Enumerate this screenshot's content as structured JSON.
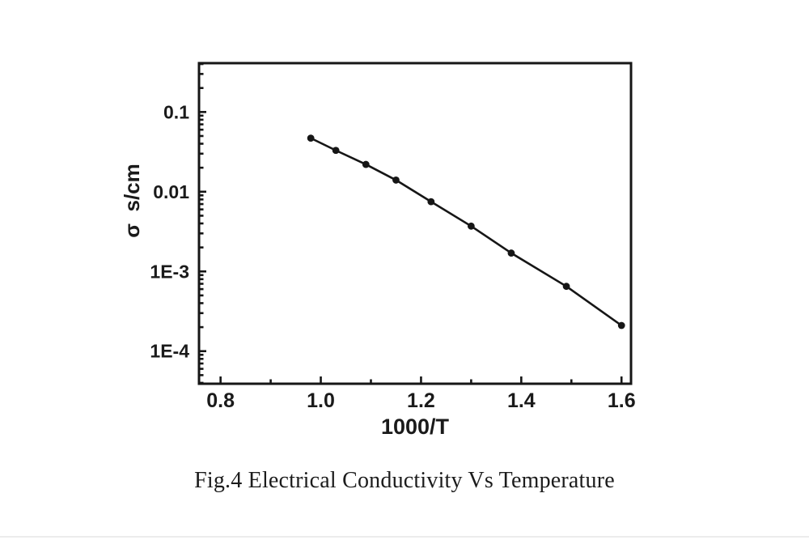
{
  "figure": {
    "caption": "Fig.4 Electrical Conductivity Vs Temperature"
  },
  "chart_data": {
    "type": "line",
    "title": "",
    "xlabel": "1000/T",
    "ylabel": "σ  s/cm",
    "x": [
      0.98,
      1.03,
      1.09,
      1.15,
      1.22,
      1.3,
      1.38,
      1.49,
      1.6
    ],
    "y": [
      0.047,
      0.033,
      0.022,
      0.014,
      0.0075,
      0.0037,
      0.0017,
      0.00065,
      0.00021
    ],
    "marker": "filled-circle",
    "line_color": "#161616",
    "x_scale": "linear",
    "y_scale": "log",
    "xlim": [
      0.757,
      1.619
    ],
    "ylim": [
      3.9e-05,
      0.41
    ],
    "x_ticks": [
      0.8,
      1.0,
      1.2,
      1.4,
      1.6
    ],
    "x_tick_labels": [
      "0.8",
      "1.0",
      "1.2",
      "1.4",
      "1.6"
    ],
    "x_minor_ticks": [
      0.9,
      1.1,
      1.3,
      1.5
    ],
    "y_ticks": [
      0.1,
      0.01,
      0.001,
      0.0001
    ],
    "y_tick_labels": [
      "0.1",
      "0.01",
      "1E-3",
      "1E-4"
    ],
    "grid": false,
    "legend": "none"
  }
}
